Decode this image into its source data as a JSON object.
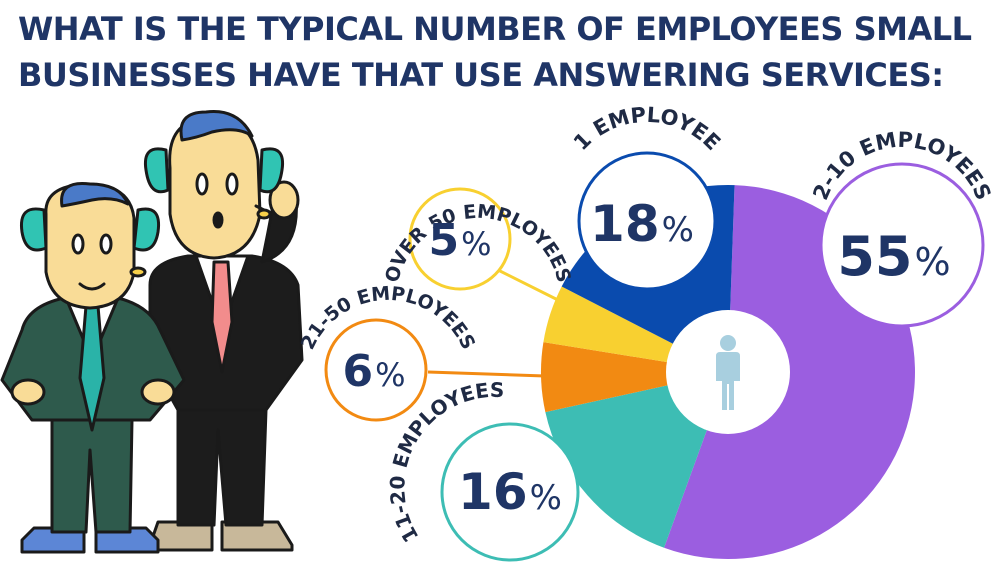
{
  "title_lines": [
    "WHAT IS THE TYPICAL NUMBER OF EMPLOYEES SMALL",
    "BUSINESSES HAVE THAT USE ANSWERING SERVICES:"
  ],
  "colors": {
    "title": "#1f3566",
    "value_text": "#1f3566",
    "label_text": "#1f2a44",
    "center_icon": "#a8cfdf"
  },
  "chart_data": {
    "type": "pie",
    "title": "WHAT IS THE TYPICAL NUMBER OF EMPLOYEES SMALL BUSINESSES HAVE THAT USE ANSWERING SERVICES:",
    "unit": "%",
    "center_icon": "person-icon",
    "slices": [
      {
        "label": "2-10 EMPLOYEES",
        "value": 55,
        "color": "#9b5ee0"
      },
      {
        "label": "11-20 EMPLOYEES",
        "value": 16,
        "color": "#3dbdb4"
      },
      {
        "label": "21-50 EMPLOYEES",
        "value": 6,
        "color": "#f28a12"
      },
      {
        "label": "OVER 50 EMPLOYEES",
        "value": 5,
        "color": "#f8d030"
      },
      {
        "label": "1 EMPLOYEE",
        "value": 18,
        "color": "#0a4bae"
      }
    ]
  },
  "illustration": {
    "figures": [
      "businessman-left",
      "businessman-right-on-phone"
    ]
  }
}
